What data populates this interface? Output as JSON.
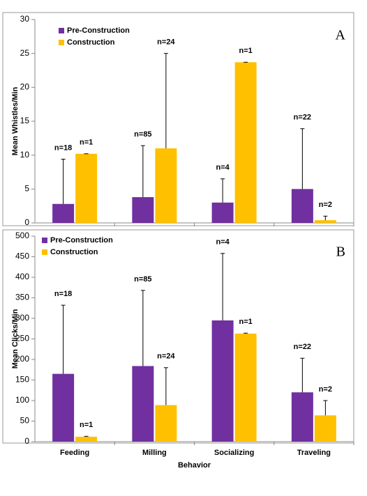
{
  "chart_data": [
    {
      "type": "bar",
      "panel_label": "A",
      "ylabel": "Mean Whistles/Min",
      "ylim": [
        0,
        30
      ],
      "yticks": [
        0,
        5,
        10,
        15,
        20,
        25,
        30
      ],
      "legend": "upper-left",
      "series": [
        {
          "name": "Pre-Construction",
          "color": "#7030a0",
          "values": [
            2.8,
            3.8,
            3.0,
            5.0
          ],
          "errors": [
            6.6,
            7.6,
            3.5,
            8.9
          ],
          "annotations": [
            "n=18",
            "n=85",
            "n=4",
            "n=22"
          ]
        },
        {
          "name": "Construction",
          "color": "#ffc000",
          "values": [
            10.2,
            11.0,
            23.7,
            0.4
          ],
          "errors": [
            0,
            14.0,
            0,
            0.6
          ],
          "annotations": [
            "n=1",
            "n=24",
            "n=1",
            "n=2"
          ]
        }
      ]
    },
    {
      "type": "bar",
      "panel_label": "B",
      "ylabel": "Mean Clicks/Min",
      "xlabel": "Behavior",
      "categories": [
        "Feeding",
        "Milling",
        "Socializing",
        "Traveling"
      ],
      "ylim": [
        0,
        500
      ],
      "yticks": [
        0,
        50,
        100,
        150,
        200,
        250,
        300,
        350,
        400,
        450,
        500
      ],
      "legend": "upper-left",
      "series": [
        {
          "name": "Pre-Construction",
          "color": "#7030a0",
          "values": [
            165,
            184,
            295,
            120
          ],
          "errors": [
            167,
            184,
            163,
            83
          ],
          "annotations": [
            "n=18",
            "n=85",
            "n=4",
            "n=22"
          ]
        },
        {
          "name": "Construction",
          "color": "#ffc000",
          "values": [
            12,
            89,
            263,
            64
          ],
          "errors": [
            1,
            91,
            1,
            36
          ],
          "annotations": [
            "n=1",
            "n=24",
            "n=1",
            "n=2"
          ]
        }
      ]
    }
  ]
}
